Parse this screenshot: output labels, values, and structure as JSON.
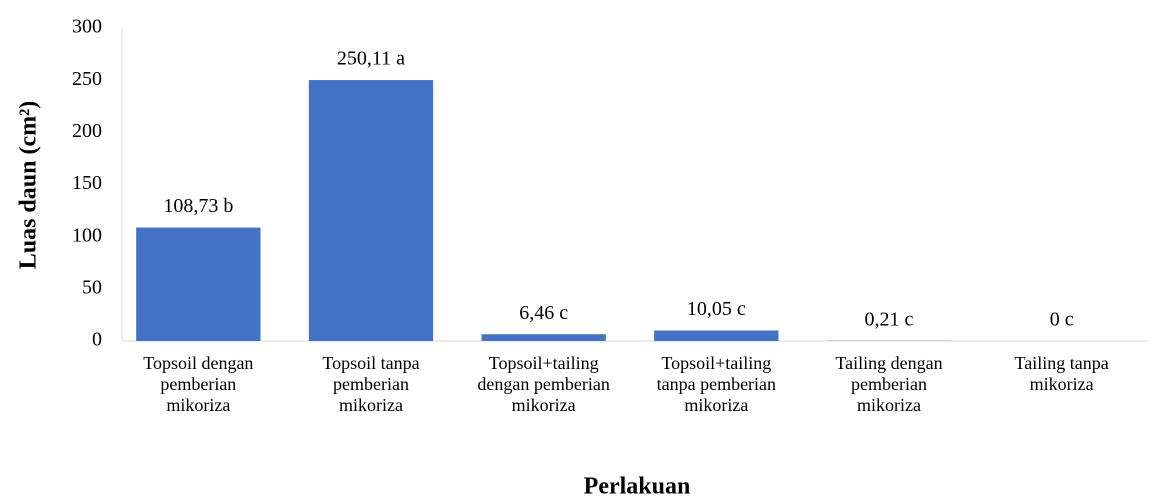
{
  "chart_data": {
    "type": "bar",
    "categories": [
      "Topsoil dengan pemberian mikoriza",
      "Topsoil tanpa pemberian mikoriza",
      "Topsoil+tailing dengan pemberian mikoriza",
      "Topsoil+tailing tanpa pemberian mikoriza",
      "Tailing dengan pemberian mikoriza",
      "Tailing tanpa mikoriza"
    ],
    "values": [
      108.73,
      250.11,
      6.46,
      10.05,
      0.21,
      0
    ],
    "value_labels": [
      "108,73 b",
      "250,11 a",
      "6,46 c",
      "10,05 c",
      "0,21 c",
      "0 c"
    ],
    "color": "#4472c4",
    "ylim": [
      0,
      300
    ],
    "yticks": [
      0,
      50,
      100,
      150,
      200,
      250,
      300
    ],
    "grid": false,
    "ylabel": "Luas daun (cm²)",
    "xlabel": "Perlakuan"
  }
}
